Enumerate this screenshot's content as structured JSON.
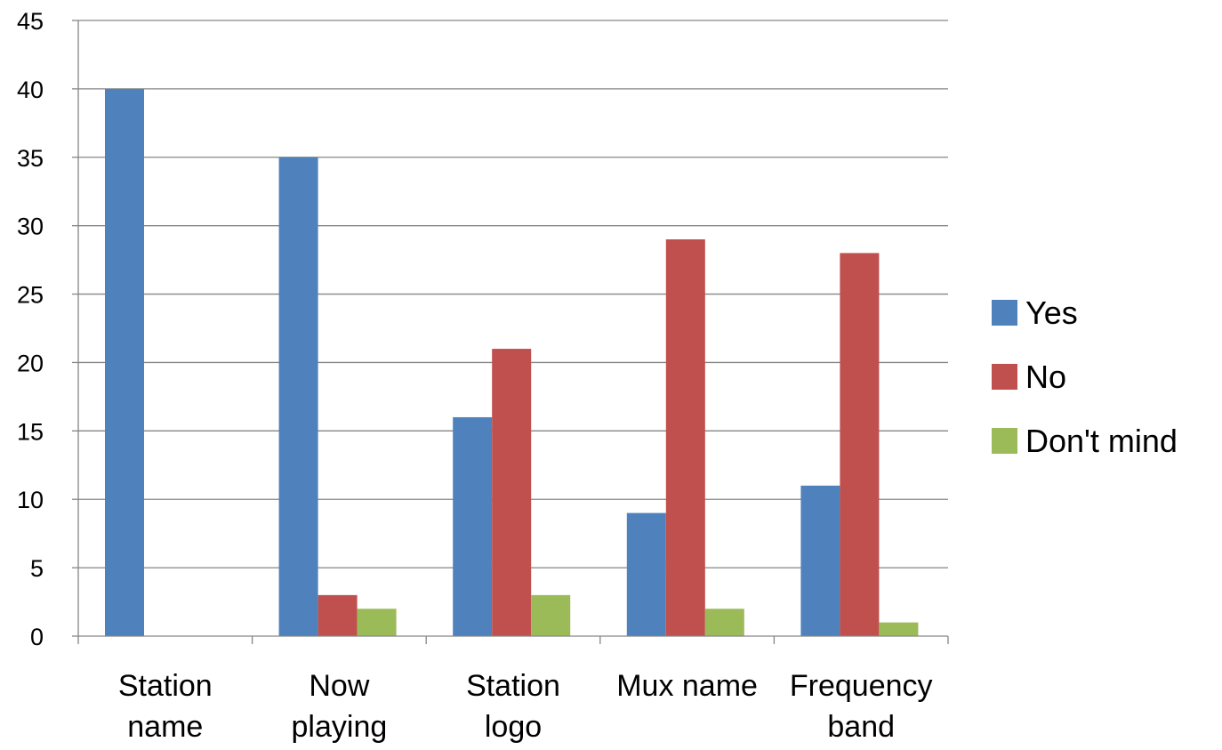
{
  "chart_data": {
    "type": "bar",
    "title": "",
    "xlabel": "",
    "ylabel": "",
    "categories": [
      [
        "Station",
        "name"
      ],
      [
        "Now",
        "playing"
      ],
      [
        "Station",
        "logo"
      ],
      [
        "Mux name"
      ],
      [
        "Frequency",
        "band"
      ]
    ],
    "series": [
      {
        "name": "Yes",
        "color": "#4F81BD",
        "values": [
          40,
          35,
          16,
          9,
          11
        ]
      },
      {
        "name": "No",
        "color": "#C0504D",
        "values": [
          0,
          3,
          21,
          29,
          28
        ]
      },
      {
        "name": "Don't mind",
        "color": "#9BBB59",
        "values": [
          0,
          2,
          3,
          2,
          1
        ]
      }
    ],
    "ylim": [
      0,
      45
    ],
    "yticks": [
      0,
      5,
      10,
      15,
      20,
      25,
      30,
      35,
      40,
      45
    ],
    "grid": true,
    "legend_position": "right"
  }
}
